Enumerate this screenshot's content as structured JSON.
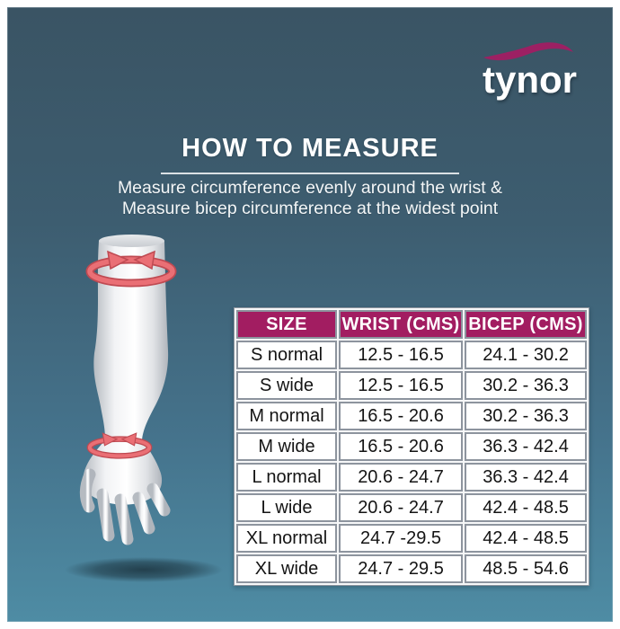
{
  "brand": {
    "name": "tynor",
    "swoosh_icon": "brand-swoosh"
  },
  "header": {
    "title": "HOW TO MEASURE",
    "subtitle_line1": "Measure circumference evenly around the wrist &",
    "subtitle_line2": "Measure bicep circumference at the widest point"
  },
  "illustration": {
    "name": "arm-with-measurement-arrows",
    "bicep_arrow_icon": "circular-measure-arrows",
    "wrist_arrow_icon": "circular-measure-arrows"
  },
  "chart_data": {
    "type": "table",
    "title": "HOW TO MEASURE",
    "columns": [
      "SIZE",
      "WRIST (CMS)",
      "BICEP (CMS)"
    ],
    "rows": [
      [
        "S normal",
        "12.5 - 16.5",
        "24.1 - 30.2"
      ],
      [
        "S wide",
        "12.5 - 16.5",
        "30.2 - 36.3"
      ],
      [
        "M normal",
        "16.5 - 20.6",
        "30.2 - 36.3"
      ],
      [
        "M wide",
        "16.5 - 20.6",
        "36.3 - 42.4"
      ],
      [
        "L normal",
        "20.6 - 24.7",
        "36.3 - 42.4"
      ],
      [
        "L wide",
        "20.6 - 24.7",
        "42.4 - 48.5"
      ],
      [
        "XL normal",
        "24.7 -29.5",
        "42.4 - 48.5"
      ],
      [
        "XL wide",
        "24.7 - 29.5",
        "48.5 - 54.6"
      ]
    ]
  },
  "colors": {
    "background_top": "#3a5464",
    "background_bottom": "#4e8ca4",
    "table_header_bg": "#a21d61",
    "swoosh": "#9c2063",
    "measure_arrow": "#ea6f75",
    "measure_arrow_outline": "#bf4a52",
    "text": "#ffffff"
  }
}
